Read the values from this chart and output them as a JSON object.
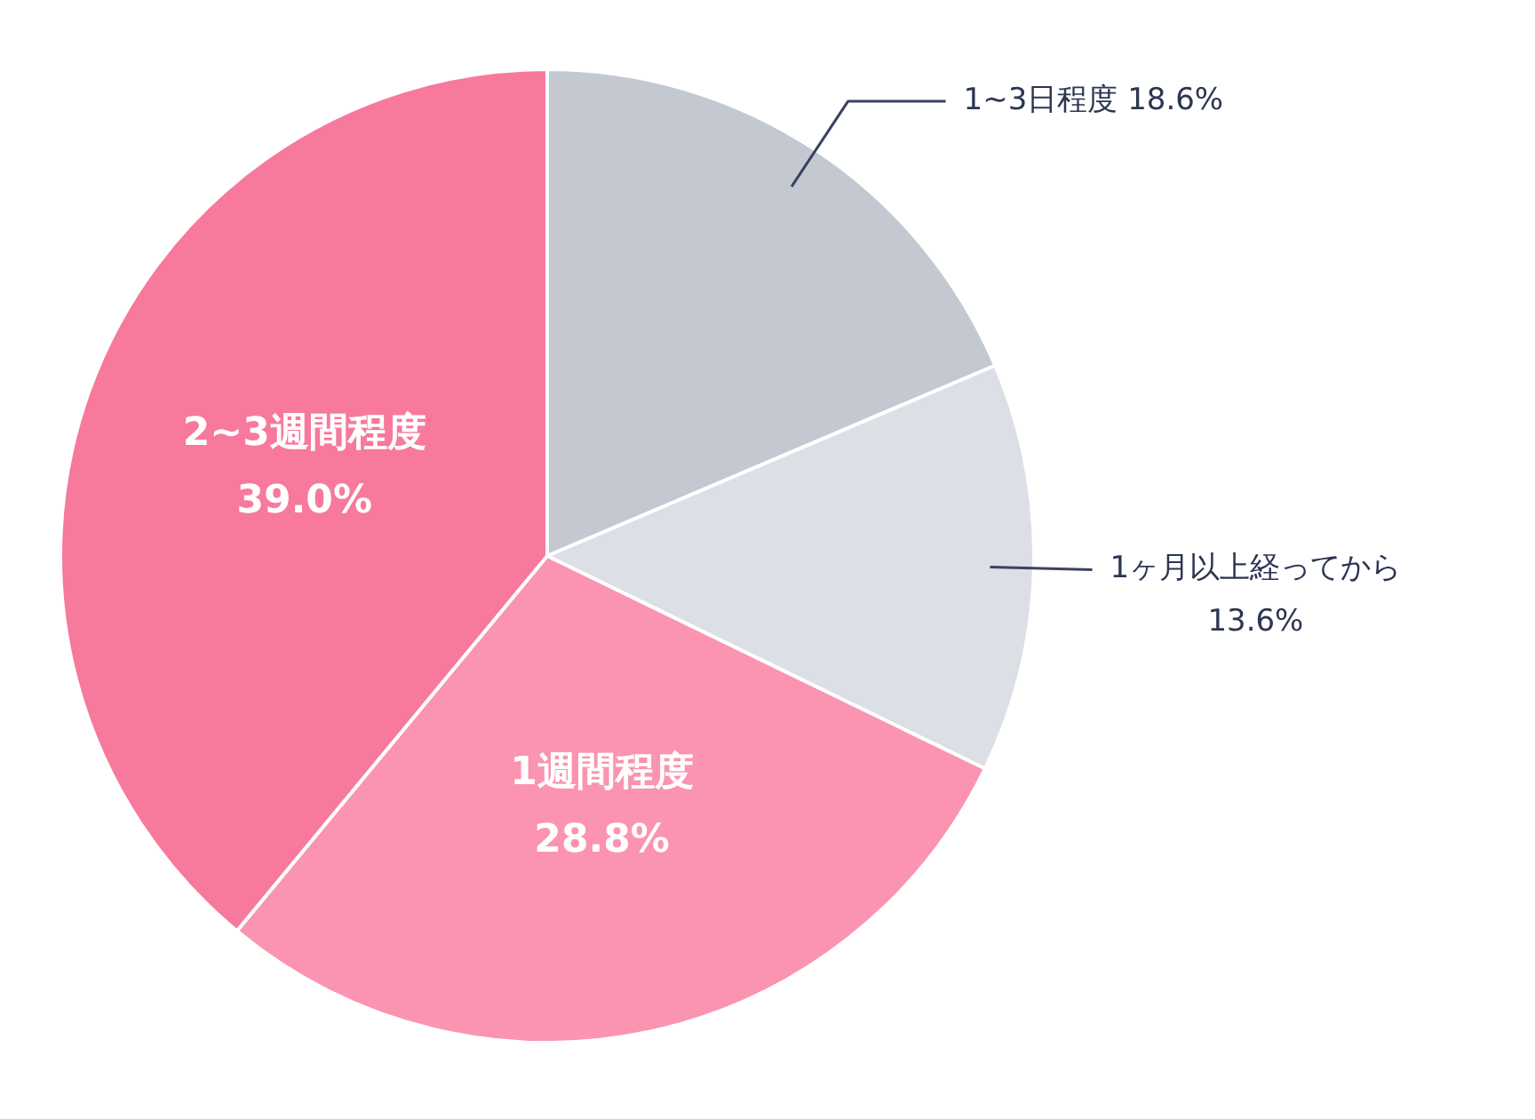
{
  "chart_data": {
    "type": "pie",
    "categories": [
      "1~3日程度",
      "1ヶ月以上経ってから",
      "1週間程度",
      "2~3週間程度"
    ],
    "values": [
      18.6,
      13.6,
      28.8,
      39.0
    ],
    "value_labels": [
      "18.6%",
      "13.6%",
      "28.8%",
      "39.0%"
    ],
    "colors": [
      "#c3c8d1",
      "#dcdfe5",
      "#fa94b0",
      "#f7799c"
    ]
  }
}
